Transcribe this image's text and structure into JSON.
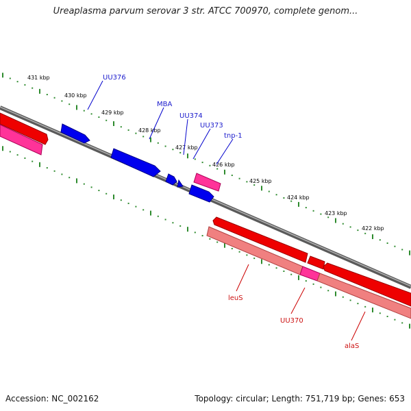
{
  "title": "Ureaplasma parvum serovar 3 str. ATCC 700970, complete genom...",
  "footer": {
    "accession": "Accession: NC_002162",
    "summary": "Topology: circular; Length: 751,719 bp; Genes: 653"
  },
  "colors": {
    "backbone": "#7a7a7a",
    "tick": "#2e8b2e",
    "forward_gene": "#0000ee",
    "forward_label": "#1a1acc",
    "reverse_gene": "#ee0000",
    "reverse_label": "#cc1111",
    "reverse_gene_light": "#f08080",
    "rna_gene": "#ff3399"
  },
  "ruler": {
    "unit": "kbp",
    "labels": [
      "431 kbp",
      "430 kbp",
      "429 kbp",
      "428 kbp",
      "427 kbp",
      "426 kbp",
      "425 kbp",
      "424 kbp",
      "423 kbp",
      "422 kbp"
    ]
  },
  "gene_labels": {
    "forward": [
      "UU376",
      "MBA",
      "UU374",
      "UU373",
      "tnp-1"
    ],
    "reverse": [
      "leuS",
      "UU370",
      "alaS"
    ]
  }
}
